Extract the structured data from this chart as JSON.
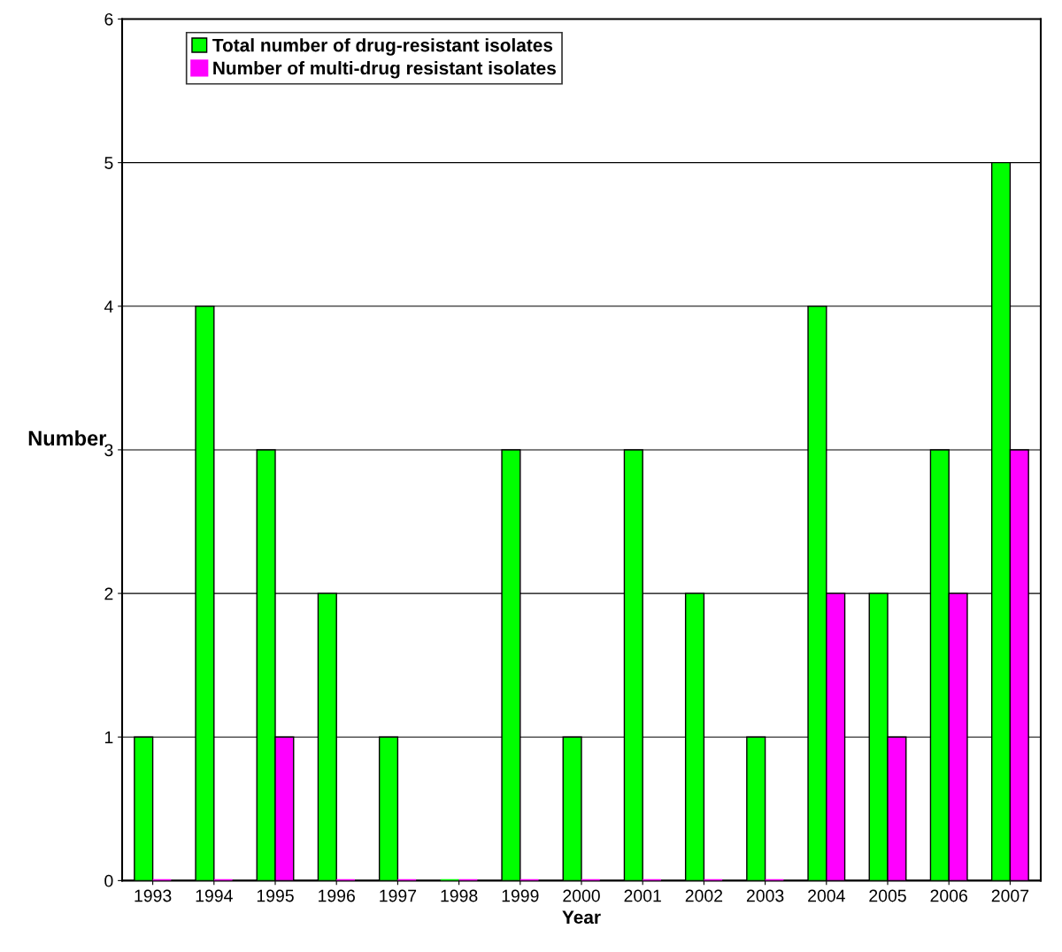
{
  "chart_data": {
    "type": "bar",
    "xlabel": "Year",
    "ylabel": "Number",
    "categories": [
      "1993",
      "1994",
      "1995",
      "1996",
      "1997",
      "1998",
      "1999",
      "2000",
      "2001",
      "2002",
      "2003",
      "2004",
      "2005",
      "2006",
      "2007"
    ],
    "series": [
      {
        "name": "Total number of drug-resistant isolates",
        "color": "#00ff00",
        "values": [
          1,
          4,
          3,
          2,
          1,
          0,
          3,
          1,
          3,
          2,
          1,
          4,
          2,
          3,
          5
        ]
      },
      {
        "name": "Number of multi-drug resistant isolates",
        "color": "#ff00ff",
        "values": [
          0,
          0,
          1,
          0,
          0,
          0,
          0,
          0,
          0,
          0,
          0,
          2,
          1,
          2,
          3
        ]
      }
    ],
    "ylim": [
      0,
      6
    ],
    "yticks": [
      0,
      1,
      2,
      3,
      4,
      5,
      6
    ],
    "grid": "y",
    "legend": "top left"
  }
}
